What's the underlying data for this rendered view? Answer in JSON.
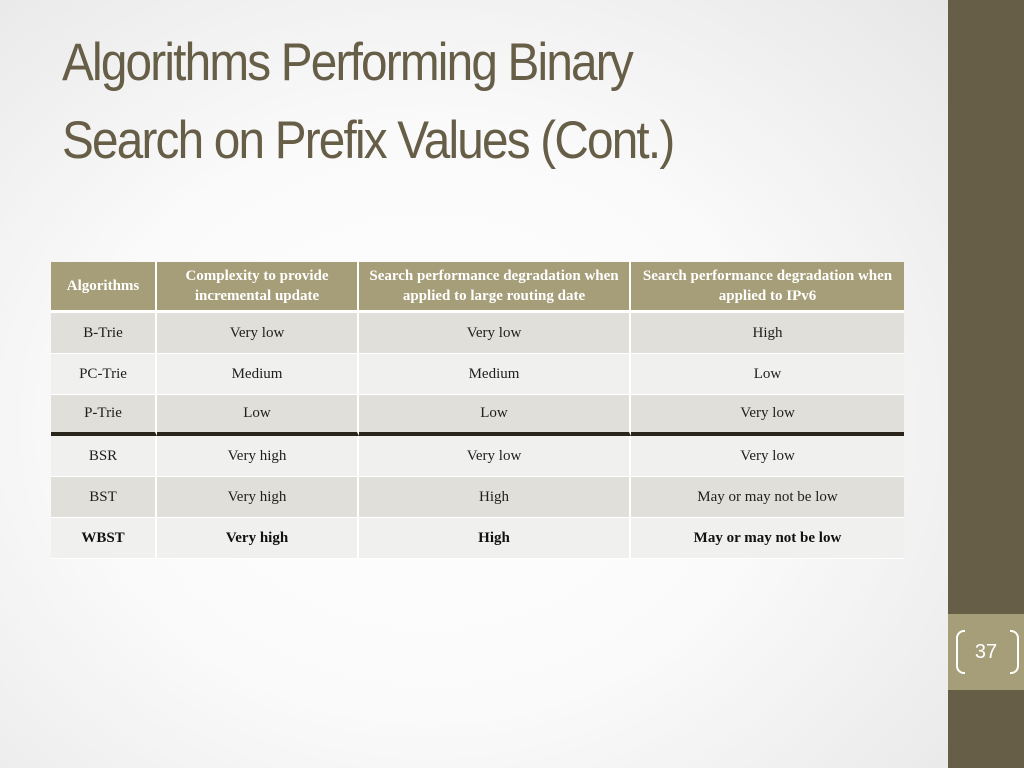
{
  "slide": {
    "title_line1": "Algorithms Performing Binary",
    "title_line2": "Search on Prefix Values (Cont.)",
    "page_number": "37"
  },
  "table": {
    "headers": [
      "Algorithms",
      "Complexity to provide incremental update",
      "Search performance degradation when applied to large routing date",
      "Search performance degradation when applied to IPv6"
    ],
    "rows": [
      [
        "B-Trie",
        "Very low",
        "Very low",
        "High"
      ],
      [
        "PC-Trie",
        "Medium",
        "Medium",
        "Low"
      ],
      [
        "P-Trie",
        "Low",
        "Low",
        "Very low"
      ],
      [
        "BSR",
        "Very high",
        "Very low",
        "Very low"
      ],
      [
        "BST",
        "Very high",
        "High",
        "May or may not be low"
      ],
      [
        "WBST",
        "Very high",
        "High",
        "May or may not be low"
      ]
    ]
  },
  "colors": {
    "sidebar": "#675e47",
    "accent": "#a59e78",
    "title": "#675e47"
  }
}
